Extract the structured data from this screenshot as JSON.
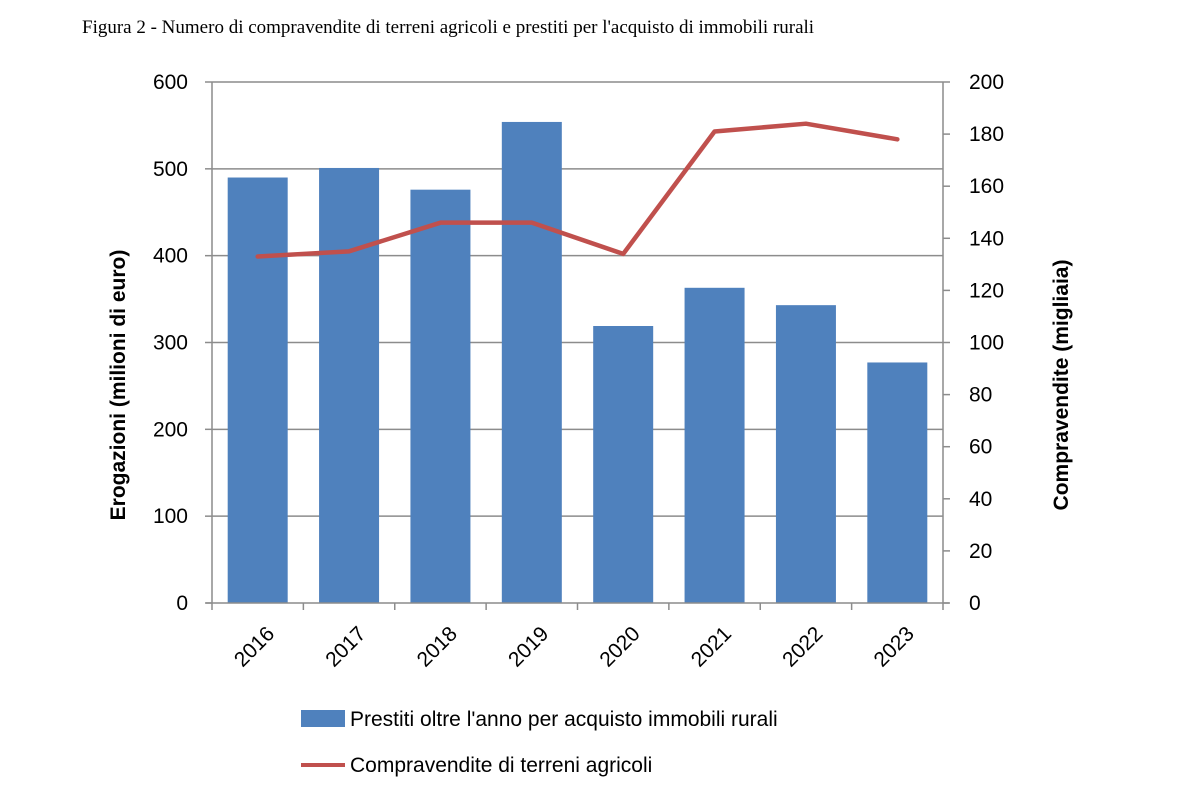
{
  "figure_title": "Figura 2 - Numero di compravendite di terreni agricoli e prestiti per l'acquisto di immobili rurali",
  "chart_data": {
    "type": "bar",
    "title": "Figura 2 - Numero di compravendite di terreni agricoli e prestiti per l'acquisto di immobili rurali",
    "categories": [
      "2016",
      "2017",
      "2018",
      "2019",
      "2020",
      "2021",
      "2022",
      "2023"
    ],
    "series": [
      {
        "name": "Prestiti oltre l'anno per acquisto immobili rurali",
        "type": "bar",
        "axis": "left",
        "color": "#4f81bd",
        "values": [
          490,
          501,
          476,
          554,
          319,
          363,
          343,
          277
        ]
      },
      {
        "name": "Compravendite di terreni agricoli",
        "type": "line",
        "axis": "right",
        "color": "#c0504d",
        "values": [
          133,
          135,
          146,
          146,
          134,
          181,
          184,
          178
        ]
      }
    ],
    "ylabel": "Erogazioni (milioni di euro)",
    "ylim": [
      0,
      600
    ],
    "yticks": [
      0,
      100,
      200,
      300,
      400,
      500,
      600
    ],
    "y2label": "Compravendite (migliaia)",
    "y2lim": [
      0,
      200
    ],
    "y2ticks": [
      0,
      20,
      40,
      60,
      80,
      100,
      120,
      140,
      160,
      180,
      200
    ],
    "grid": true,
    "legend_position": "bottom"
  }
}
